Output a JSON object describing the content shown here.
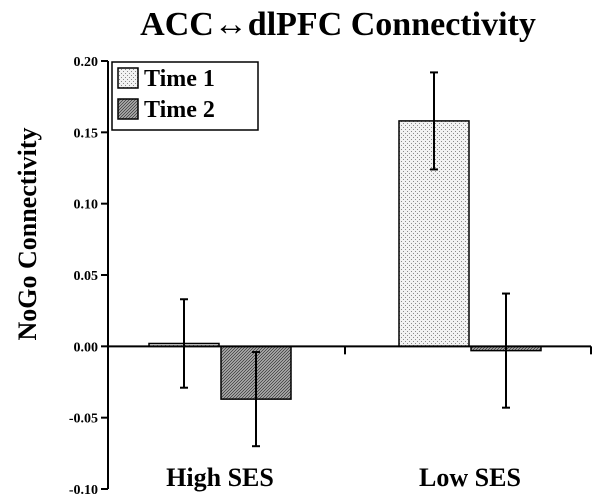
{
  "chart_data": {
    "type": "bar",
    "title": "ACC↔dlPFC Connectivity",
    "ylabel": "NoGo Connectivity",
    "xlabel": "",
    "categories": [
      "High SES",
      "Low SES"
    ],
    "ylim": [
      -0.1,
      0.2
    ],
    "yticks": [
      "0.20",
      "0.15",
      "0.10",
      "0.05",
      "0.00",
      "-0.05",
      "-0.10"
    ],
    "ytick_values": [
      0.2,
      0.15,
      0.1,
      0.05,
      0.0,
      -0.05,
      -0.1
    ],
    "legend_position": "top-left",
    "series": [
      {
        "name": "Time 1",
        "values": [
          0.002,
          0.158
        ],
        "errors": [
          0.031,
          0.034
        ],
        "fill": "#e8e8e8",
        "pattern": "dotted"
      },
      {
        "name": "Time 2",
        "values": [
          -0.037,
          -0.003
        ],
        "errors": [
          0.033,
          0.04
        ],
        "fill": "#808080",
        "pattern": "dense"
      }
    ]
  }
}
